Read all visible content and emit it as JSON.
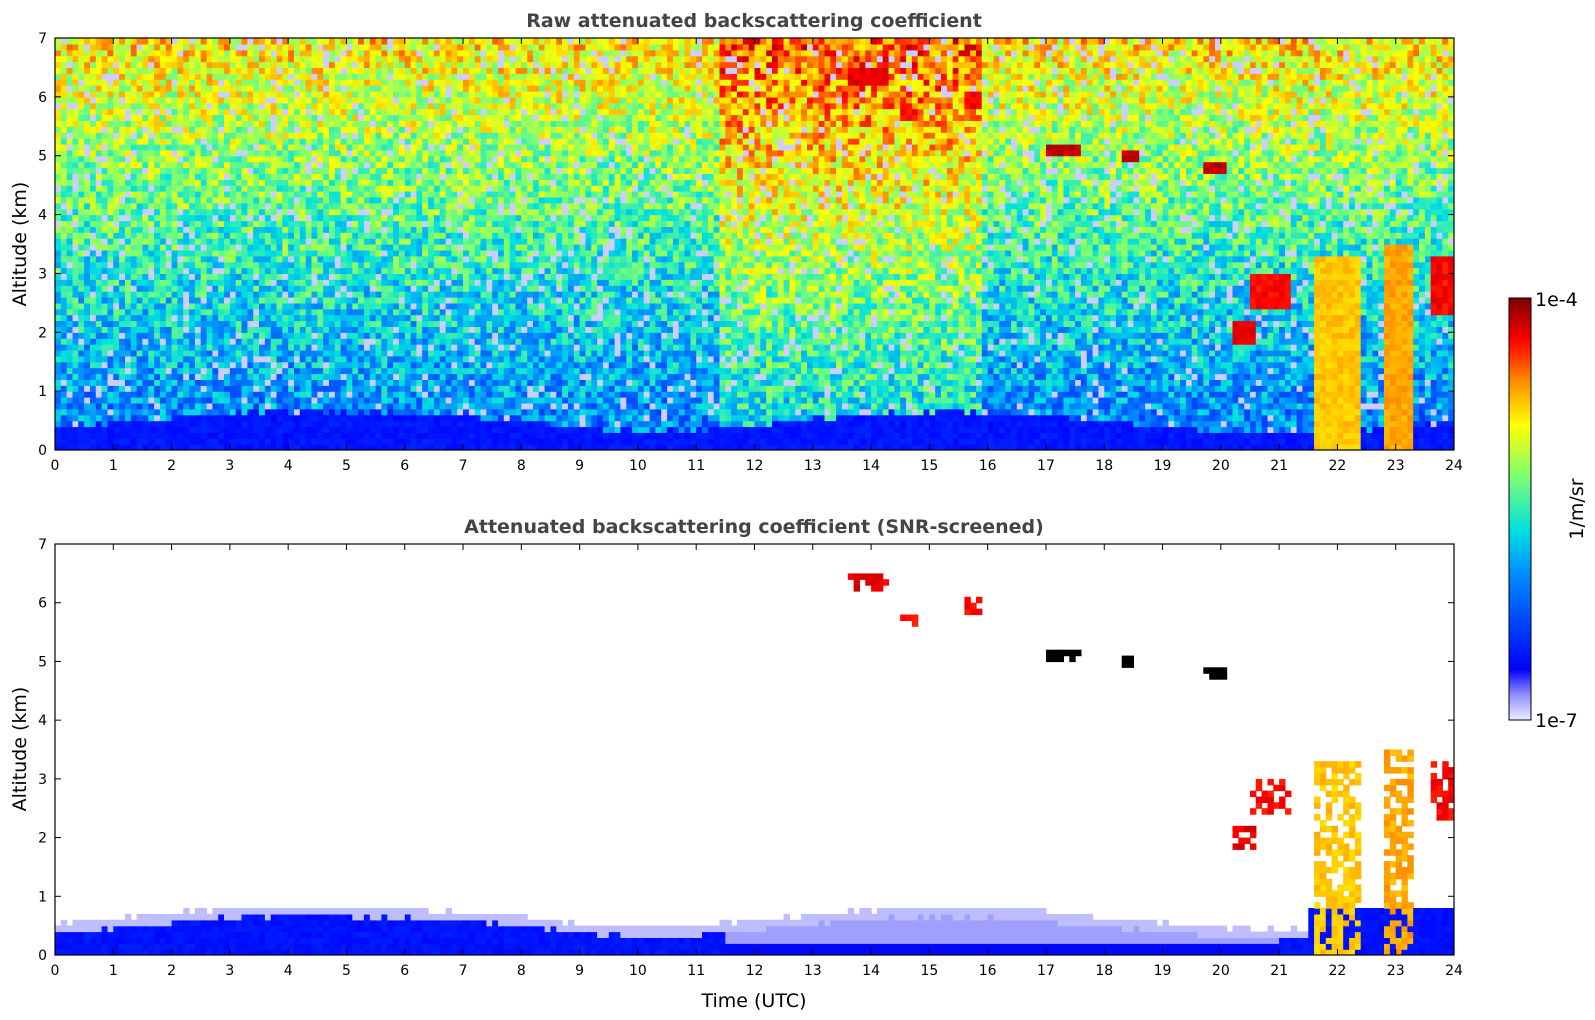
{
  "chart_data": [
    {
      "type": "heatmap",
      "title": "Raw attenuated backscattering coefficient",
      "xlabel": "",
      "ylabel": "Altitude (km)",
      "xlim": [
        0,
        24
      ],
      "ylim": [
        0,
        7
      ],
      "x_ticks": [
        0,
        1,
        2,
        3,
        4,
        5,
        6,
        7,
        8,
        9,
        10,
        11,
        12,
        13,
        14,
        15,
        16,
        17,
        18,
        19,
        20,
        21,
        22,
        23,
        24
      ],
      "y_ticks": [
        0,
        1,
        2,
        3,
        4,
        5,
        6,
        7
      ],
      "clouds": [
        {
          "t0": 13.6,
          "t1": 14.3,
          "z0": 6.2,
          "z1": 6.5,
          "level": 0.92
        },
        {
          "t0": 14.5,
          "t1": 14.8,
          "z0": 5.65,
          "z1": 5.85,
          "level": 0.9
        },
        {
          "t0": 15.6,
          "t1": 15.85,
          "z0": 5.8,
          "z1": 6.1,
          "level": 0.9
        },
        {
          "t0": 17.0,
          "t1": 17.6,
          "z0": 5.05,
          "z1": 5.2,
          "level": 0.95
        },
        {
          "t0": 18.3,
          "t1": 18.6,
          "z0": 4.95,
          "z1": 5.1,
          "level": 0.95
        },
        {
          "t0": 19.7,
          "t1": 20.1,
          "z0": 4.65,
          "z1": 4.85,
          "level": 0.95
        },
        {
          "t0": 20.5,
          "t1": 21.2,
          "z0": 2.4,
          "z1": 3.0,
          "level": 0.9
        },
        {
          "t0": 20.2,
          "t1": 20.6,
          "z0": 1.8,
          "z1": 2.2,
          "level": 0.92
        },
        {
          "t0": 21.6,
          "t1": 22.4,
          "z0": 0.0,
          "z1": 3.3,
          "level": 0.75
        },
        {
          "t0": 22.8,
          "t1": 23.3,
          "z0": 0.0,
          "z1": 3.5,
          "level": 0.78
        },
        {
          "t0": 23.6,
          "t1": 24.0,
          "z0": 2.3,
          "z1": 3.3,
          "level": 0.9
        }
      ]
    },
    {
      "type": "heatmap",
      "title": "Attenuated backscattering coefficient (SNR-screened)",
      "xlabel": "Time (UTC)",
      "ylabel": "Altitude (km)",
      "xlim": [
        0,
        24
      ],
      "ylim": [
        0,
        7
      ],
      "x_ticks": [
        0,
        1,
        2,
        3,
        4,
        5,
        6,
        7,
        8,
        9,
        10,
        11,
        12,
        13,
        14,
        15,
        16,
        17,
        18,
        19,
        20,
        21,
        22,
        23,
        24
      ],
      "y_ticks": [
        0,
        1,
        2,
        3,
        4,
        5,
        6,
        7
      ]
    }
  ],
  "colorbar": {
    "max_label": "1e-4",
    "min_label": "1e-7",
    "unit_label": "1/m/sr",
    "colors": [
      "#e8e8ff",
      "#0000ff",
      "#0080ff",
      "#00e0e0",
      "#80ff80",
      "#ffff00",
      "#ff8000",
      "#ff0000",
      "#800000"
    ]
  }
}
